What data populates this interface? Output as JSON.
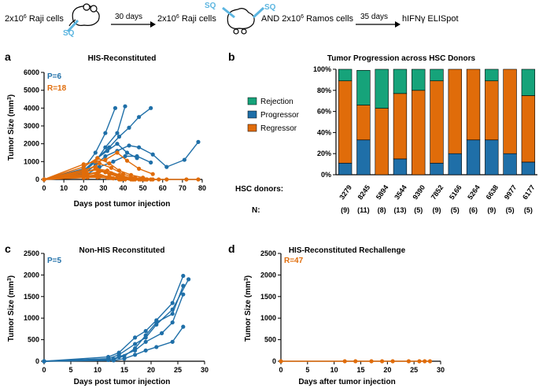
{
  "header": {
    "step1": "2x10",
    "step1_exp": "6",
    "step1_tail": " Raji cells",
    "sq": "SQ",
    "arrow1": "30 days",
    "step2": "2x10",
    "step2_exp": "6",
    "step2_tail": " Raji cells",
    "step3": "AND 2x10",
    "step3_exp": "6",
    "step3_tail": " Ramos cells",
    "arrow3": "35 days",
    "step4": "hIFNγ ELISpot"
  },
  "colors": {
    "blue": "#1f6fa8",
    "orange": "#e06c0a",
    "green": "#16a37a",
    "axis": "#000000"
  },
  "chart_data": [
    {
      "panel": "a",
      "type": "line",
      "title": "HIS-Reconstituted",
      "xlabel": "Days post tumor injection",
      "ylabel": "Tumor Size (mm",
      "ylabel_exp": "3",
      "ylabel_end": ")",
      "xlim": [
        0,
        80
      ],
      "ylim": [
        0,
        6000
      ],
      "xticks": [
        0,
        10,
        20,
        30,
        40,
        50,
        60,
        70,
        80
      ],
      "yticks": [
        0,
        1000,
        2000,
        3000,
        4000,
        5000,
        6000
      ],
      "annotations": [
        {
          "text": "P=6",
          "color": "blue"
        },
        {
          "text": "R=18",
          "color": "orange"
        }
      ],
      "series": [
        {
          "name": "P1",
          "color": "blue",
          "x": [
            0,
            20,
            26,
            31,
            36
          ],
          "y": [
            0,
            600,
            1500,
            2600,
            4000
          ]
        },
        {
          "name": "P2",
          "color": "blue",
          "x": [
            0,
            20,
            26,
            31,
            37,
            41
          ],
          "y": [
            0,
            400,
            1000,
            1800,
            2600,
            4100
          ]
        },
        {
          "name": "P3",
          "color": "blue",
          "x": [
            0,
            21,
            27,
            33,
            38,
            43,
            48,
            54
          ],
          "y": [
            0,
            500,
            1200,
            1800,
            2400,
            2900,
            3500,
            4000
          ]
        },
        {
          "name": "P4",
          "color": "blue",
          "x": [
            0,
            20,
            27,
            32,
            37,
            42,
            47
          ],
          "y": [
            0,
            500,
            1200,
            1600,
            2000,
            1500,
            1200
          ]
        },
        {
          "name": "P5",
          "color": "blue",
          "x": [
            0,
            20,
            26,
            31,
            37,
            43,
            48,
            55,
            62,
            71,
            78
          ],
          "y": [
            0,
            300,
            800,
            1300,
            1600,
            1900,
            1800,
            1400,
            700,
            1100,
            2100
          ]
        },
        {
          "name": "P6",
          "color": "blue",
          "x": [
            0,
            21,
            28,
            35,
            41,
            47,
            54
          ],
          "y": [
            0,
            250,
            700,
            1000,
            1300,
            1300,
            950
          ]
        },
        {
          "name": "R1",
          "color": "orange",
          "x": [
            0,
            20,
            26,
            31,
            37,
            42,
            48,
            55
          ],
          "y": [
            0,
            850,
            1000,
            1100,
            1500,
            1050,
            600,
            300
          ]
        },
        {
          "name": "R2",
          "color": "orange",
          "x": [
            0,
            20,
            27,
            33,
            38,
            44,
            50,
            55
          ],
          "y": [
            0,
            700,
            1200,
            900,
            500,
            250,
            100,
            0
          ]
        },
        {
          "name": "R3",
          "color": "orange",
          "x": [
            0,
            21,
            28,
            34,
            40,
            46,
            52
          ],
          "y": [
            0,
            500,
            900,
            650,
            300,
            100,
            0
          ]
        },
        {
          "name": "R4",
          "color": "orange",
          "x": [
            0,
            20,
            26,
            31,
            37,
            43,
            49
          ],
          "y": [
            0,
            550,
            700,
            400,
            200,
            50,
            0
          ]
        },
        {
          "name": "R5",
          "color": "orange",
          "x": [
            0,
            21,
            27,
            33,
            39,
            45
          ],
          "y": [
            0,
            450,
            550,
            300,
            100,
            0
          ]
        },
        {
          "name": "R6",
          "color": "orange",
          "x": [
            0,
            20,
            26,
            32,
            38,
            44,
            50
          ],
          "y": [
            0,
            350,
            600,
            500,
            250,
            80,
            0
          ]
        },
        {
          "name": "R7",
          "color": "orange",
          "x": [
            0,
            22,
            28,
            34,
            40,
            46,
            52,
            58
          ],
          "y": [
            0,
            300,
            450,
            350,
            150,
            50,
            0,
            0
          ]
        },
        {
          "name": "R8",
          "color": "orange",
          "x": [
            0,
            20,
            27,
            33,
            39
          ],
          "y": [
            0,
            250,
            350,
            100,
            0
          ]
        },
        {
          "name": "R9",
          "color": "orange",
          "x": [
            0,
            21,
            27,
            33,
            39,
            45,
            51,
            62,
            72,
            78
          ],
          "y": [
            0,
            200,
            250,
            150,
            50,
            0,
            0,
            0,
            0,
            0
          ]
        },
        {
          "name": "R10",
          "color": "orange",
          "x": [
            0,
            20,
            26,
            32,
            38,
            44
          ],
          "y": [
            0,
            150,
            200,
            100,
            0,
            0
          ]
        },
        {
          "name": "R11",
          "color": "orange",
          "x": [
            0,
            22,
            28,
            34,
            40,
            46,
            52
          ],
          "y": [
            0,
            120,
            150,
            80,
            20,
            0,
            0
          ]
        },
        {
          "name": "R12",
          "color": "orange",
          "x": [
            0,
            20,
            27,
            35,
            41,
            48,
            54
          ],
          "y": [
            0,
            100,
            120,
            60,
            0,
            0,
            0
          ]
        }
      ]
    },
    {
      "panel": "b",
      "type": "bar",
      "title": "Tumor Progression across HSC Donors",
      "ylim": [
        0,
        100
      ],
      "yticks": [
        "0%",
        "20%",
        "40%",
        "60%",
        "80%",
        "100%"
      ],
      "legend_position": "left",
      "donors_label": "HSC donors:",
      "n_label": "N:",
      "categories": [
        "3279",
        "8245",
        "5894",
        "3544",
        "9390",
        "7852",
        "5166",
        "5264",
        "6638",
        "9977",
        "6177"
      ],
      "n_values": [
        "(9)",
        "(11)",
        "(8)",
        "(13)",
        "(5)",
        "(9)",
        "(5)",
        "(6)",
        "(9)",
        "(5)",
        "(5)"
      ],
      "series": [
        {
          "name": "Progressor",
          "color": "blue",
          "values": [
            11,
            33,
            0,
            15,
            0,
            11,
            20,
            33,
            33,
            20,
            12
          ]
        },
        {
          "name": "Regressor",
          "color": "orange",
          "values": [
            78,
            33,
            63,
            62,
            80,
            78,
            80,
            67,
            56,
            80,
            63
          ]
        },
        {
          "name": "Rejection",
          "color": "green",
          "values": [
            11,
            33,
            37,
            23,
            20,
            11,
            0,
            0,
            11,
            0,
            25
          ]
        }
      ],
      "legend": [
        "Rejection",
        "Progressor",
        "Regressor"
      ]
    },
    {
      "panel": "c",
      "type": "line",
      "title": "Non-HIS Reconstituted",
      "xlabel": "Days post tumor injection",
      "ylabel": "Tumor  Size (mm",
      "ylabel_exp": "3",
      "ylabel_end": ")",
      "xlim": [
        0,
        30
      ],
      "ylim": [
        0,
        2500
      ],
      "xticks": [
        0,
        5,
        10,
        15,
        20,
        25,
        30
      ],
      "yticks": [
        0,
        500,
        1000,
        1500,
        2000,
        2500
      ],
      "annotations": [
        {
          "text": "P=5",
          "color": "blue"
        }
      ],
      "series": [
        {
          "name": "P1",
          "color": "blue",
          "x": [
            0,
            12,
            14,
            17,
            19,
            21,
            24,
            26
          ],
          "y": [
            0,
            100,
            200,
            550,
            700,
            950,
            1350,
            1980
          ]
        },
        {
          "name": "P2",
          "color": "blue",
          "x": [
            0,
            12,
            14,
            17,
            19,
            21,
            24,
            27
          ],
          "y": [
            0,
            60,
            150,
            400,
            550,
            850,
            1200,
            1900
          ]
        },
        {
          "name": "P3",
          "color": "blue",
          "x": [
            0,
            13,
            15,
            17,
            19,
            21,
            24,
            26
          ],
          "y": [
            0,
            50,
            120,
            300,
            600,
            900,
            1100,
            1750
          ]
        },
        {
          "name": "P4",
          "color": "blue",
          "x": [
            0,
            12,
            14,
            17,
            19,
            22,
            24,
            26
          ],
          "y": [
            0,
            30,
            100,
            250,
            450,
            650,
            900,
            1550
          ]
        },
        {
          "name": "P5",
          "color": "blue",
          "x": [
            0,
            13,
            15,
            17,
            19,
            21,
            24,
            26
          ],
          "y": [
            0,
            20,
            60,
            150,
            250,
            330,
            450,
            800
          ]
        }
      ]
    },
    {
      "panel": "d",
      "type": "line",
      "title": "HIS-Reconstituted Rechallenge",
      "xlabel": "Days after tumor injection",
      "ylabel": "Tumor  Size (mm",
      "ylabel_exp": "3",
      "ylabel_end": ")",
      "xlim": [
        0,
        30
      ],
      "ylim": [
        0,
        2500
      ],
      "xticks": [
        0,
        5,
        10,
        15,
        20,
        25,
        30
      ],
      "yticks": [
        0,
        500,
        1000,
        1500,
        2000,
        2500
      ],
      "annotations": [
        {
          "text": "R=47",
          "color": "orange"
        }
      ],
      "series": [
        {
          "name": "R",
          "color": "orange",
          "x": [
            0,
            12,
            14,
            17,
            19,
            21,
            24,
            26,
            27,
            28
          ],
          "y": [
            0,
            0,
            0,
            0,
            0,
            0,
            0,
            0,
            0,
            0
          ]
        }
      ]
    }
  ],
  "panel_letters": [
    "a",
    "b",
    "c",
    "d"
  ]
}
